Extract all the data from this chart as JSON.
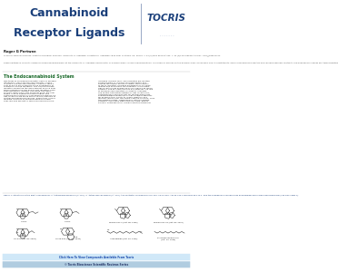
{
  "title_line1": "Cannabinoid",
  "title_line2": "Receptor Ligands",
  "tocris_text": "TOCRIS",
  "header_bg": "#cce0f0",
  "header_title_color": "#1a3f7a",
  "tocris_color": "#1a3f7a",
  "body_bg": "#ffffff",
  "author_bold": "Roger G Pertwee",
  "author_affil": "School of Medical Sciences, Institute of Medical Sciences, University of Aberdeen, Foresterhill, Aberdeen AB25 2ZD, Scotland, UK. Phone: + 44 (0)1224 555705; Fax: + 44 (0)1224 555844; E-mail: r.g.p@abdn.ac.uk",
  "author_bio": "Roger Pertwee is currently Professor of Neuropharmacology at the University of Aberdeen and Director of Pharmacology for GW Pharmaceuticals. His research focuses on the pharmacology of cannabis and its constituents, and of cannabinoid receptors and cannabis-derived, synthetic and endogenous ligands for these receptors.",
  "section_title": "The Endocannabinoid System",
  "section_color": "#1a6a2a",
  "section_text_left": "Two types of cannabinoid receptor have so far been\nidentified.1 These are the CB1 receptor, cloned\nin 1990,2 and the CB2 receptor, cloned in 1993,3\nboth of which are members of the superfamily of\nG-protein-coupled receptors. The cloning of these\nreceptors prompted the development of mice from\nwhich cannabinoid CB1 and/or CB2 receptors have\nbeen genetically deleted, and these transgenic\nanimals, particularly CB1 knockout mice, are now\nwidely used to explore the physiological and\npathological functions of cannabinoid receptors.4,5\nCB1 receptors are found mainly at the terminals of\ncentral and peripheral neurons, where they usually\nmediate inhibition of neurotransmitter release.\nThey are also present in some non-neuronal cells,",
  "section_text_right": "including immune cells. CB2 receptors are located\npredominantly in immune cells both within and\noutside the central nervous system, the functions\nof these receptors including modulation of cytokine\nrelease and of immune cell migration. In the brain,\nCB2 receptors are expressed by microglia,6 by blood\nvessels,7 and by some neurons.8,9 However, the role\nof neuronal CB2 receptors is currently unknown.\n\nThe spatial distribution pattern of CB1 receptors is\nheterogeneous and accounts for several prominent\npharmacological properties of CB1 receptor agonists,\nfor example their ability to impair cognition and\nmemory and to alter the cardio-vascular function. Thus\nthe cerebral cortex, hippocampus, lateral caudate-\nputamen, substantia nigra pars reticulata, globus\npallidus, entopeduncular nucleus and the molecular",
  "figure_caption": "Figure 1: Structures of the plant cannabinoids, Δ¹-tetrahydrocannabinol (Δ¹THC), Δ⁹-tetrahydrocannabinol (Δ⁹-THC), the synthetic cannabinoids HU-210, CP-55,940, AM-55,212-2 and WIN 55,212-2, and the endogenous cannabinoids anandamide and 2-arachidonoylglycerol (see also Table 1).",
  "figure_caption_color": "#1a3f7a",
  "label_r1c1": "Δ¹-THC",
  "label_r1c2": "Δ⁹-THC",
  "label_r1c3": "WIN 55,212-2 (Cat. No. 1058)",
  "label_r1c4": "WIN 55,212-2S (Cat. No. 2297)",
  "label_r2c1": "HU-210 (Cat. No. 0966)",
  "label_r2c2": "CP-55,940 (Cat. No. 0949)",
  "label_r2c3": "Anandamide (Cat. No. 1339)",
  "label_r2c4": "2-Arachidonoylglycerol\n(Cat. No. 1298)",
  "bottom_text1": "Click Here To View Compounds Available From Tocris",
  "bottom_bg": "#d6e8f5",
  "bottom_text2": "© Tocris Bioscience Scientific Reviews Series",
  "bottom_bg2": "#b8d4ec",
  "text_color": "#333333",
  "small_text_color": "#555555",
  "mol_line_color": "#333333"
}
